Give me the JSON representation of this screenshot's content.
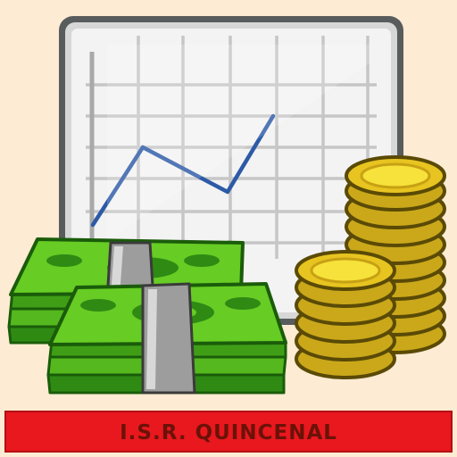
{
  "app": {
    "banner_title": "I.S.R. QUINCENAL",
    "background_color": "#fdebd3",
    "banner_color": "#e8181e",
    "banner_text_color": "#6b1208"
  },
  "illustration": {
    "icons": [
      "line-chart-icon",
      "banknote-stack-icon",
      "coin-stack-icon"
    ],
    "colors": {
      "cash_green": "#58c21e",
      "coin_gold": "#f4dc2c",
      "chart_line": "#2d5aa6"
    }
  }
}
